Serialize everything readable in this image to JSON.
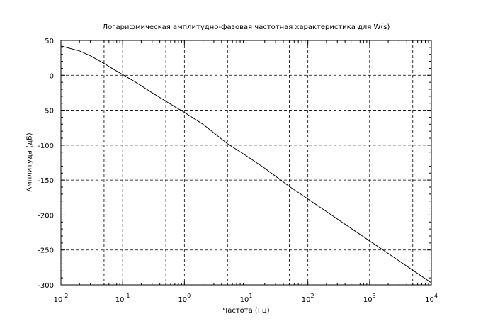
{
  "chart_data": {
    "type": "line",
    "title": "Логарифмическая амплитудно-фазовая частотная характеристика для W(s)",
    "xlabel": "Частота (Гц)",
    "ylabel": "Амплитуда (дБ)",
    "x_scale": "log",
    "xlim": [
      0.01,
      10000
    ],
    "ylim": [
      -300,
      50
    ],
    "x_ticks": [
      {
        "base": "10",
        "exp": "-2",
        "value": 0.01
      },
      {
        "base": "10",
        "exp": "-1",
        "value": 0.1
      },
      {
        "base": "10",
        "exp": "0",
        "value": 1
      },
      {
        "base": "10",
        "exp": "1",
        "value": 10
      },
      {
        "base": "10",
        "exp": "2",
        "value": 100
      },
      {
        "base": "10",
        "exp": "3",
        "value": 1000
      },
      {
        "base": "10",
        "exp": "4",
        "value": 10000
      }
    ],
    "y_ticks": [
      {
        "label": "50",
        "value": 50
      },
      {
        "label": "0",
        "value": 0
      },
      {
        "label": "-50",
        "value": -50
      },
      {
        "label": "-100",
        "value": -100
      },
      {
        "label": "-150",
        "value": -150
      },
      {
        "label": "-200",
        "value": -200
      },
      {
        "label": "-250",
        "value": -250
      },
      {
        "label": "-300",
        "value": -300
      }
    ],
    "grid": true,
    "grid_style": "dashed",
    "x_grid_values": [
      0.01,
      0.05,
      0.1,
      0.5,
      1,
      5,
      10,
      50,
      100,
      500,
      1000,
      5000,
      10000
    ],
    "series": [
      {
        "color": "#000000",
        "x": [
          0.01,
          0.02,
          0.03,
          0.05,
          0.07,
          0.1,
          0.15,
          0.2,
          0.3,
          0.5,
          0.7,
          1,
          2,
          5,
          10,
          20,
          50,
          100,
          200,
          500,
          1000,
          2000,
          5000,
          10000
        ],
        "y": [
          42,
          35,
          28,
          17,
          9,
          1,
          -8,
          -15,
          -25,
          -37,
          -45,
          -53,
          -70,
          -98,
          -115,
          -133,
          -159,
          -177,
          -195,
          -219,
          -237,
          -255,
          -279,
          -297
        ]
      }
    ]
  }
}
